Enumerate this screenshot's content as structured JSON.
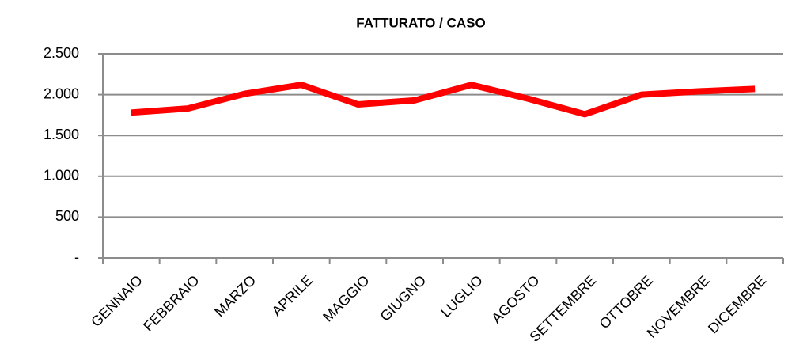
{
  "chart_data": {
    "type": "line",
    "title": "FATTURATO  / CASO",
    "categories": [
      "GENNAIO",
      "FEBBRAIO",
      "MARZO",
      "APRILE",
      "MAGGIO",
      "GIUGNO",
      "LUGLIO",
      "AGOSTO",
      "SETTEMBRE",
      "OTTOBRE",
      "NOVEMBRE",
      "DICEMBRE"
    ],
    "series": [
      {
        "name": "FATTURATO / CASO",
        "color": "#ff0000",
        "values": [
          1780,
          1830,
          2010,
          2120,
          1880,
          1930,
          2120,
          1950,
          1760,
          2000,
          2040,
          2070
        ]
      }
    ],
    "ylim": [
      0,
      2500
    ],
    "yticks": [
      {
        "value": 0,
        "label": "-"
      },
      500,
      {
        "value": 1000,
        "label": "1.000"
      },
      {
        "value": 1500,
        "label": "1.500"
      },
      {
        "value": 2000,
        "label": "2.000"
      },
      {
        "value": 2500,
        "label": "2.500"
      }
    ],
    "grid": true
  }
}
